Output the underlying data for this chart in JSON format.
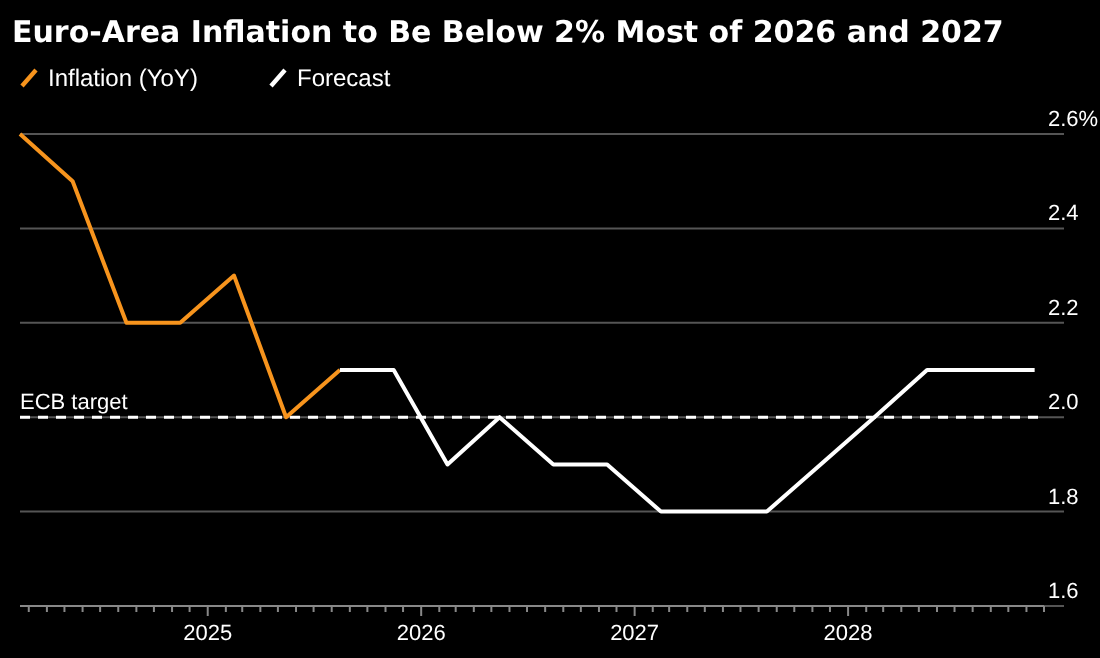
{
  "chart_data": {
    "type": "line",
    "title": "Euro-Area Inflation to Be Below 2% Most of 2026 and 2027",
    "series": [
      {
        "name": "Inflation (YoY)",
        "color": "#f7941d",
        "x": [
          "2024-02-15",
          "2024-05-15",
          "2024-08-15",
          "2024-11-15",
          "2025-02-15",
          "2025-05-15",
          "2025-08-15"
        ],
        "values": [
          2.6,
          2.5,
          2.2,
          2.2,
          2.3,
          2.0,
          2.1
        ]
      },
      {
        "name": "Forecast",
        "color": "#ffffff",
        "x": [
          "2025-08-15",
          "2025-11-15",
          "2026-02-15",
          "2026-05-15",
          "2026-08-15",
          "2026-11-15",
          "2027-02-15",
          "2027-05-15",
          "2027-08-15",
          "2027-11-15",
          "2028-02-15",
          "2028-05-15",
          "2028-08-15",
          "2028-11-15"
        ],
        "values": [
          2.1,
          2.1,
          1.9,
          2.0,
          1.9,
          1.9,
          1.8,
          1.8,
          1.8,
          1.9,
          2.0,
          2.1,
          2.1,
          2.1
        ]
      }
    ],
    "xlim": [
      "2024-02-15",
      "2028-12-01"
    ],
    "xticks": [
      {
        "value": "2024-03-01",
        "label": null
      },
      {
        "value": "2024-04-01",
        "label": null
      },
      {
        "value": "2024-05-01",
        "label": null
      },
      {
        "value": "2024-06-01",
        "label": null
      },
      {
        "value": "2024-07-01",
        "label": null
      },
      {
        "value": "2024-08-01",
        "label": null
      },
      {
        "value": "2024-09-01",
        "label": null
      },
      {
        "value": "2024-10-01",
        "label": null
      },
      {
        "value": "2024-11-01",
        "label": null
      },
      {
        "value": "2024-12-01",
        "label": null
      },
      {
        "value": "2025-01-01",
        "label": "2025"
      },
      {
        "value": "2025-02-01",
        "label": null
      },
      {
        "value": "2025-03-01",
        "label": null
      },
      {
        "value": "2025-04-01",
        "label": null
      },
      {
        "value": "2025-05-01",
        "label": null
      },
      {
        "value": "2025-06-01",
        "label": null
      },
      {
        "value": "2025-07-01",
        "label": null
      },
      {
        "value": "2025-08-01",
        "label": null
      },
      {
        "value": "2025-09-01",
        "label": null
      },
      {
        "value": "2025-10-01",
        "label": null
      },
      {
        "value": "2025-11-01",
        "label": null
      },
      {
        "value": "2025-12-01",
        "label": null
      },
      {
        "value": "2026-01-01",
        "label": "2026"
      },
      {
        "value": "2026-02-01",
        "label": null
      },
      {
        "value": "2026-03-01",
        "label": null
      },
      {
        "value": "2026-04-01",
        "label": null
      },
      {
        "value": "2026-05-01",
        "label": null
      },
      {
        "value": "2026-06-01",
        "label": null
      },
      {
        "value": "2026-07-01",
        "label": null
      },
      {
        "value": "2026-08-01",
        "label": null
      },
      {
        "value": "2026-09-01",
        "label": null
      },
      {
        "value": "2026-10-01",
        "label": null
      },
      {
        "value": "2026-11-01",
        "label": null
      },
      {
        "value": "2026-12-01",
        "label": null
      },
      {
        "value": "2027-01-01",
        "label": "2027"
      },
      {
        "value": "2027-02-01",
        "label": null
      },
      {
        "value": "2027-03-01",
        "label": null
      },
      {
        "value": "2027-04-01",
        "label": null
      },
      {
        "value": "2027-05-01",
        "label": null
      },
      {
        "value": "2027-06-01",
        "label": null
      },
      {
        "value": "2027-07-01",
        "label": null
      },
      {
        "value": "2027-08-01",
        "label": null
      },
      {
        "value": "2027-09-01",
        "label": null
      },
      {
        "value": "2027-10-01",
        "label": null
      },
      {
        "value": "2027-11-01",
        "label": null
      },
      {
        "value": "2027-12-01",
        "label": null
      },
      {
        "value": "2028-01-01",
        "label": "2028"
      },
      {
        "value": "2028-02-01",
        "label": null
      },
      {
        "value": "2028-03-01",
        "label": null
      },
      {
        "value": "2028-04-01",
        "label": null
      },
      {
        "value": "2028-05-01",
        "label": null
      },
      {
        "value": "2028-06-01",
        "label": null
      },
      {
        "value": "2028-07-01",
        "label": null
      },
      {
        "value": "2028-08-01",
        "label": null
      },
      {
        "value": "2028-09-01",
        "label": null
      },
      {
        "value": "2028-10-01",
        "label": null
      },
      {
        "value": "2028-11-01",
        "label": null
      },
      {
        "value": "2028-12-01",
        "label": null
      }
    ],
    "ylim": [
      1.6,
      2.6
    ],
    "yticks": [
      1.6,
      1.8,
      {
        "value": 2,
        "label": "2.0"
      },
      2.2,
      2.4,
      {
        "value": 2.6,
        "label": "2.6%"
      }
    ],
    "ref_lines": [
      {
        "axis": "y",
        "value": 2.0,
        "label": "ECB target",
        "color": "#ffffff",
        "line_style": "dashed"
      }
    ],
    "grid": "y",
    "legend": "top left",
    "marker": "none",
    "line_style": "solid"
  }
}
